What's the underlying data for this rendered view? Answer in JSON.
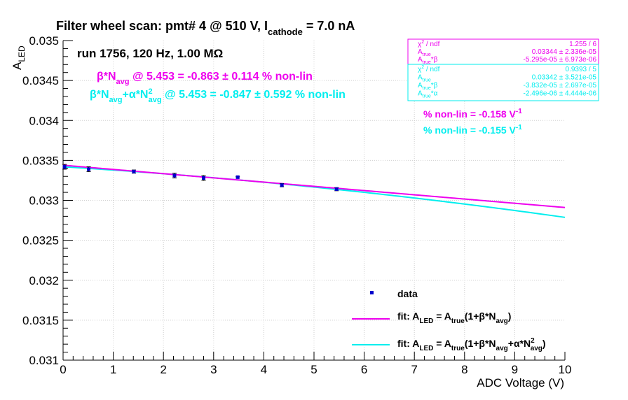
{
  "colors": {
    "data": "#0000cc",
    "fit1": "#ee00ee",
    "fit2": "#00eeee",
    "axis": "#000000",
    "grid": "#d0d0d0",
    "bg": "#ffffff"
  },
  "header": {
    "title_main": "Filter wheel scan: pmt#   4 @   510 V, I",
    "title_sub": "cathode",
    "title_tail": " = 7.0 nA"
  },
  "run_label": "run 1756, 120 Hz, 1.00 MΩ",
  "annotations": {
    "fit1": {
      "pre": "β*N",
      "sub": "avg",
      "post": " @ 5.453 = -0.863 ± 0.114 % non-lin"
    },
    "fit2": {
      "pre": "β*N",
      "sub1": "avg",
      "mid": "+α*N",
      "sup": "2",
      "sub2": "avg",
      "post": " @ 5.453 = -0.847 ± 0.592 % non-lin"
    },
    "nonlin1": {
      "text": "% non-lin = -0.158 V",
      "sup": "-1"
    },
    "nonlin2": {
      "text": "% non-lin = -0.155 V",
      "sup": "-1"
    }
  },
  "stats_box_1": {
    "rows": [
      {
        "label": "χ",
        "sup": "2",
        "rest": " / ndf",
        "value": "1.255 / 6"
      },
      {
        "label": "A",
        "sub": "true",
        "rest": "",
        "value": "0.03344 ± 2.336e-05"
      },
      {
        "label": "A",
        "sub": "true",
        "rest": "*β",
        "value": "-5.295e-05 ± 6.973e-06"
      }
    ]
  },
  "stats_box_2": {
    "rows": [
      {
        "label": "χ",
        "sup": "2",
        "rest": " / ndf",
        "value": "0.9393 / 5"
      },
      {
        "label": "A",
        "sub": "true",
        "rest": "",
        "value": "0.03342 ± 3.521e-05"
      },
      {
        "label": "A",
        "sub": "true",
        "rest": "*β",
        "value": "-3.832e-05 ± 2.697e-05"
      },
      {
        "label": "A",
        "sub": "true",
        "rest": "*α",
        "value": "-2.496e-06 ± 4.444e-06"
      }
    ]
  },
  "legend": {
    "data_label": "data",
    "fit1": {
      "a": "fit: A",
      "b": "LED",
      "c": " = A",
      "d": "true",
      "e": "(1+β*N",
      "f": "avg",
      "g": ")"
    },
    "fit2": {
      "a": "fit: A",
      "b": "LED",
      "c": " = A",
      "d": "true",
      "e": "(1+β*N",
      "f": "avg",
      "g": "+α*N",
      "h": "2",
      "i": "avg",
      "j": ")"
    }
  },
  "chart_data": {
    "type": "scatter",
    "xlabel": "ADC Voltage (V)",
    "ylabel": "A",
    "ylabel_sub": "LED",
    "xlim": [
      0,
      10
    ],
    "ylim": [
      0.031,
      0.035
    ],
    "xticks": [
      "0",
      "1",
      "2",
      "3",
      "4",
      "5",
      "6",
      "7",
      "8",
      "9",
      "10"
    ],
    "yticks": [
      "0.031",
      "0.0315",
      "0.032",
      "0.0325",
      "0.033",
      "0.0335",
      "0.034",
      "0.0345",
      "0.035"
    ],
    "grid": true,
    "legend_position": "bottom-right",
    "series": [
      {
        "name": "data",
        "kind": "points",
        "points": [
          {
            "x": 0.03,
            "y": 0.03342,
            "err": 3e-05
          },
          {
            "x": 0.51,
            "y": 0.03339,
            "err": 3e-05
          },
          {
            "x": 1.41,
            "y": 0.03336,
            "err": 2e-05
          },
          {
            "x": 2.22,
            "y": 0.03331,
            "err": 3e-05
          },
          {
            "x": 2.8,
            "y": 0.03328,
            "err": 3e-05
          },
          {
            "x": 3.48,
            "y": 0.03329,
            "err": 1e-05
          },
          {
            "x": 4.36,
            "y": 0.03319,
            "err": 2e-05
          },
          {
            "x": 5.45,
            "y": 0.03314,
            "err": 2e-05
          }
        ]
      },
      {
        "name": "fit: A_LED = A_true(1+β*N_avg)",
        "kind": "line",
        "params": {
          "A": 0.03344,
          "Ab": -5.295e-05
        }
      },
      {
        "name": "fit: A_LED = A_true(1+β*N_avg+α*N_avg^2)",
        "kind": "line",
        "params": {
          "A": 0.03342,
          "Ab": -3.832e-05,
          "Aa": -2.496e-06
        }
      }
    ]
  }
}
